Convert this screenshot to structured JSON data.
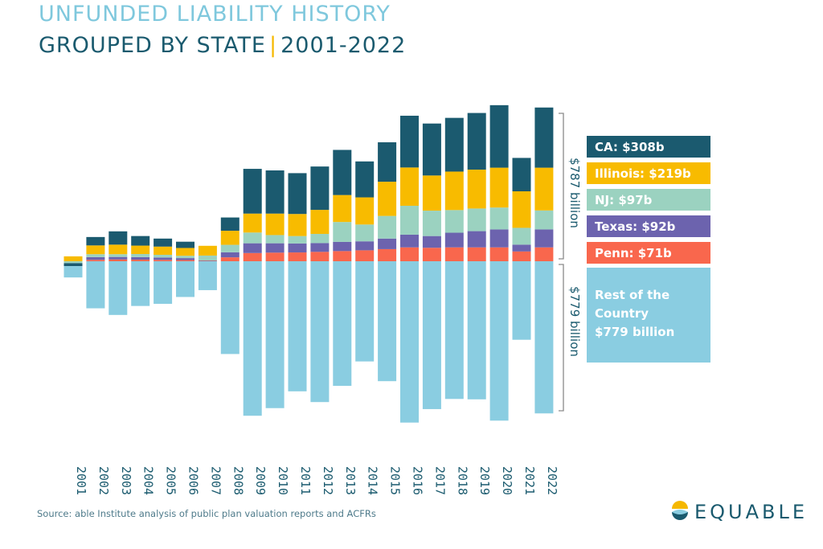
{
  "title": {
    "line1": "UNFUNDED LIABILITY HISTORY",
    "line2_left": "GROUPED BY STATE",
    "line2_sep": "|",
    "line2_right": "2001-2022"
  },
  "source": "Source: able Institute analysis of public plan valuation reports and ACFRs",
  "logo_text": "EQUABLE",
  "colors": {
    "CA": "#1b5a6f",
    "Illinois": "#f8bb00",
    "NJ": "#9bd2c0",
    "Texas": "#6c63ae",
    "Penn": "#f9674d",
    "Rest": "#8acde1",
    "text": "#1a5a6e",
    "bracket": "#8a8a8a"
  },
  "chart_data": {
    "type": "bar",
    "stacked": "diverging",
    "categories": [
      "2001",
      "2002",
      "2003",
      "2004",
      "2005",
      "2006",
      "2007",
      "2008",
      "2009",
      "2010",
      "2011",
      "2012",
      "2013",
      "2014",
      "2015",
      "2016",
      "2017",
      "2018",
      "2019",
      "2020",
      "2021",
      "2022"
    ],
    "series": [
      {
        "name": "Penn",
        "values": [
          0,
          7,
          9,
          8,
          7,
          6,
          2,
          20,
          42,
          44,
          45,
          48,
          52,
          56,
          62,
          71,
          69,
          71,
          71,
          71,
          50,
          71
        ]
      },
      {
        "name": "Texas",
        "values": [
          0,
          14,
          13,
          13,
          12,
          10,
          2,
          26,
          50,
          48,
          46,
          45,
          47,
          46,
          54,
          65,
          60,
          75,
          83,
          92,
          35,
          92
        ]
      },
      {
        "name": "NJ",
        "values": [
          -10,
          15,
          14,
          16,
          14,
          12,
          25,
          38,
          55,
          42,
          38,
          47,
          102,
          86,
          116,
          148,
          130,
          116,
          116,
          112,
          86,
          97
        ]
      },
      {
        "name": "Illinois",
        "values": [
          25,
          45,
          49,
          43,
          42,
          40,
          50,
          72,
          97,
          110,
          113,
          123,
          138,
          139,
          175,
          196,
          180,
          197,
          199,
          204,
          187,
          219
        ]
      },
      {
        "name": "CA",
        "values": [
          -15,
          43,
          68,
          49,
          41,
          32,
          0,
          68,
          229,
          221,
          209,
          222,
          231,
          184,
          202,
          265,
          266,
          275,
          290,
          320,
          171,
          308
        ]
      },
      {
        "name": "Rest of the Country",
        "values": [
          -58,
          -241,
          -275,
          -229,
          -218,
          -183,
          -148,
          -475,
          -791,
          -752,
          -666,
          -721,
          -638,
          -513,
          -614,
          -826,
          -757,
          -705,
          -707,
          -816,
          -402,
          -779
        ]
      }
    ],
    "legend": [
      {
        "key": "CA",
        "label": "CA: $308b"
      },
      {
        "key": "Illinois",
        "label": "Illinois: $219b"
      },
      {
        "key": "NJ",
        "label": "NJ: $97b"
      },
      {
        "key": "Texas",
        "label": "Texas: $92b"
      },
      {
        "key": "Penn",
        "label": "Penn: $71b"
      },
      {
        "key": "Rest",
        "label_lines": [
          "Rest of the",
          "Country",
          "$779 billion"
        ]
      }
    ],
    "bracket_labels": {
      "top": "$787 billion",
      "bottom": "$779 billion"
    },
    "legend_position": "right"
  }
}
